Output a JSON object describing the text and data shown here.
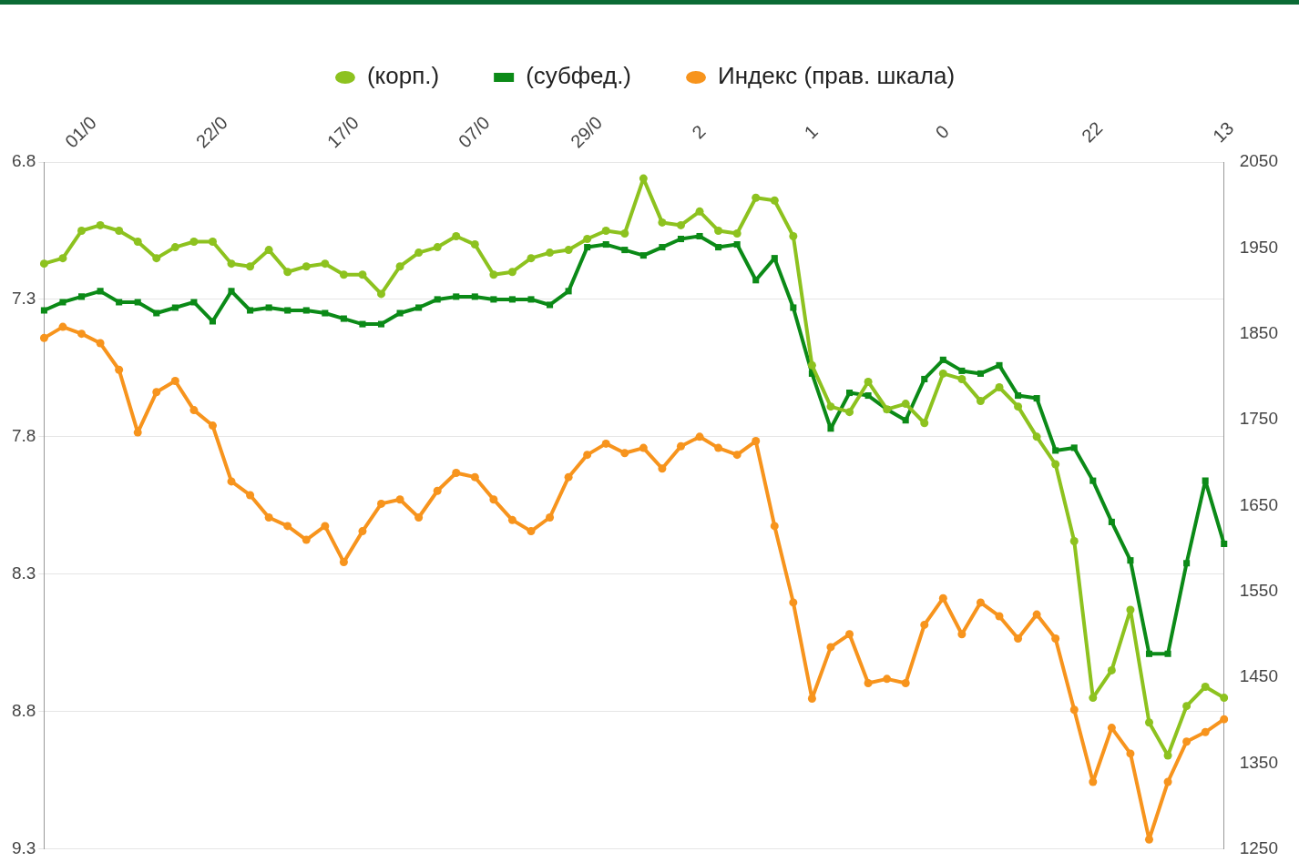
{
  "chart_data": {
    "type": "line",
    "categories": [
      null,
      null,
      "01/0",
      null,
      null,
      null,
      null,
      null,
      null,
      "22/0",
      null,
      null,
      null,
      null,
      null,
      null,
      "17/0",
      null,
      null,
      null,
      null,
      null,
      null,
      "07/0",
      null,
      null,
      null,
      null,
      null,
      "29/0",
      null,
      null,
      null,
      null,
      null,
      "2",
      null,
      null,
      null,
      null,
      null,
      "1",
      null,
      null,
      null,
      null,
      null,
      null,
      "0",
      null,
      null,
      null,
      null,
      null,
      null,
      null,
      "22",
      null,
      null,
      null,
      null,
      null,
      null,
      "13"
    ],
    "series": [
      {
        "name": "(корп.)",
        "color": "#8dc21f",
        "values": [
          7.17,
          7.15,
          7.05,
          7.03,
          7.05,
          7.09,
          7.15,
          7.11,
          7.09,
          7.09,
          7.17,
          7.18,
          7.12,
          7.2,
          7.18,
          7.17,
          7.21,
          7.21,
          7.28,
          7.18,
          7.13,
          7.11,
          7.07,
          7.1,
          7.21,
          7.2,
          7.15,
          7.13,
          7.12,
          7.08,
          7.05,
          7.06,
          6.86,
          7.02,
          7.03,
          6.98,
          7.05,
          7.06,
          6.93,
          6.94,
          7.07,
          7.54,
          7.69,
          7.71,
          7.6,
          7.7,
          7.68,
          7.75,
          7.57,
          7.59,
          7.67,
          7.62,
          7.69,
          7.8,
          7.9,
          8.18,
          8.75,
          8.65,
          8.43,
          8.84,
          8.96,
          8.78,
          8.71,
          8.75
        ]
      },
      {
        "name": "(субфед.)",
        "color": "#0b8a17",
        "marker": "square",
        "values": [
          7.34,
          7.31,
          7.29,
          7.27,
          7.31,
          7.31,
          7.35,
          7.33,
          7.31,
          7.38,
          7.27,
          7.34,
          7.33,
          7.34,
          7.34,
          7.35,
          7.37,
          7.39,
          7.39,
          7.35,
          7.33,
          7.3,
          7.29,
          7.29,
          7.3,
          7.3,
          7.3,
          7.32,
          7.27,
          7.11,
          7.1,
          7.12,
          7.14,
          7.11,
          7.08,
          7.07,
          7.11,
          7.1,
          7.23,
          7.15,
          7.33,
          7.57,
          7.77,
          7.64,
          7.65,
          7.7,
          7.74,
          7.59,
          7.52,
          7.56,
          7.57,
          7.54,
          7.65,
          7.66,
          7.85,
          7.84,
          7.96,
          8.11,
          8.25,
          8.59,
          8.59,
          8.26,
          7.96,
          8.19
        ]
      },
      {
        "name": "Индекс (прав. шкала)",
        "color": "#f7941d",
        "axis": "y2",
        "values": [
          1845,
          1858,
          1850,
          1839,
          1808,
          1735,
          1782,
          1795,
          1761,
          1743,
          1678,
          1662,
          1636,
          1626,
          1610,
          1626,
          1584,
          1620,
          1652,
          1657,
          1636,
          1667,
          1688,
          1683,
          1657,
          1633,
          1620,
          1636,
          1683,
          1709,
          1722,
          1711,
          1717,
          1693,
          1719,
          1730,
          1717,
          1709,
          1725,
          1626,
          1537,
          1425,
          1485,
          1500,
          1443,
          1448,
          1443,
          1511,
          1542,
          1500,
          1537,
          1521,
          1495,
          1523,
          1495,
          1412,
          1328,
          1391,
          1361,
          1261,
          1328,
          1375,
          1386,
          1401
        ]
      }
    ],
    "ylim": [
      9.3,
      6.8
    ],
    "yticks": [
      6.8,
      7.3,
      7.8,
      8.3,
      8.8,
      9.3
    ],
    "y2lim": [
      1250,
      2050
    ],
    "y2ticks": [
      1250,
      1350,
      1450,
      1550,
      1650,
      1750,
      1850,
      1950,
      2050
    ],
    "grid": "y",
    "legend": "top",
    "marker": "circle",
    "line_style": "solid"
  }
}
